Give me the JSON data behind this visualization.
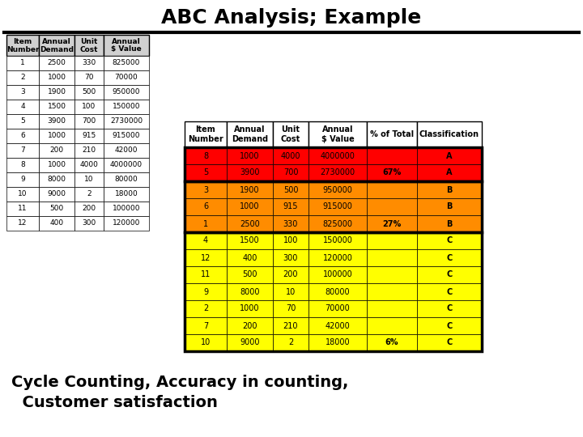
{
  "title": "ABC Analysis; Example",
  "subtitle": "Cycle Counting, Accuracy in counting,\n  Customer satisfaction",
  "left_table": {
    "col1_headers": [
      "Item",
      "Number"
    ],
    "col2_headers": [
      "Annual",
      "Demand"
    ],
    "col3_headers": [
      "Unit",
      "Cost"
    ],
    "col4_headers": [
      "Annual",
      "$ Value"
    ],
    "rows": [
      [
        "1",
        "2500",
        "330",
        "825000"
      ],
      [
        "2",
        "1000",
        "70",
        "70000"
      ],
      [
        "3",
        "1900",
        "500",
        "950000"
      ],
      [
        "4",
        "1500",
        "100",
        "150000"
      ],
      [
        "5",
        "3900",
        "700",
        "2730000"
      ],
      [
        "6",
        "1000",
        "915",
        "915000"
      ],
      [
        "7",
        "200",
        "210",
        "42000"
      ],
      [
        "8",
        "1000",
        "4000",
        "4000000"
      ],
      [
        "9",
        "8000",
        "10",
        "80000"
      ],
      [
        "10",
        "9000",
        "2",
        "18000"
      ],
      [
        "11",
        "500",
        "200",
        "100000"
      ],
      [
        "12",
        "400",
        "300",
        "120000"
      ]
    ]
  },
  "right_table": {
    "headers": [
      "Item\nNumber",
      "Annual\nDemand",
      "Unit\nCost",
      "Annual\n$ Value",
      "% of Total",
      "Classification"
    ],
    "rows": [
      [
        "8",
        "1000",
        "4000",
        "4000000",
        "",
        "A",
        "red"
      ],
      [
        "5",
        "3900",
        "700",
        "2730000",
        "67%",
        "A",
        "red"
      ],
      [
        "3",
        "1900",
        "500",
        "950000",
        "",
        "B",
        "orange"
      ],
      [
        "6",
        "1000",
        "915",
        "915000",
        "",
        "B",
        "orange"
      ],
      [
        "1",
        "2500",
        "330",
        "825000",
        "27%",
        "B",
        "orange"
      ],
      [
        "4",
        "1500",
        "100",
        "150000",
        "",
        "C",
        "yellow"
      ],
      [
        "12",
        "400",
        "300",
        "120000",
        "",
        "C",
        "yellow"
      ],
      [
        "11",
        "500",
        "200",
        "100000",
        "",
        "C",
        "yellow"
      ],
      [
        "9",
        "8000",
        "10",
        "80000",
        "",
        "C",
        "yellow"
      ],
      [
        "2",
        "1000",
        "70",
        "70000",
        "",
        "C",
        "yellow"
      ],
      [
        "7",
        "200",
        "210",
        "42000",
        "",
        "C",
        "yellow"
      ],
      [
        "10",
        "9000",
        "2",
        "18000",
        "6%",
        "C",
        "yellow"
      ]
    ]
  },
  "bg_color": "#ffffff",
  "title_fontsize": 18,
  "subtitle_fontsize": 14,
  "color_map": {
    "red": "#ff0000",
    "orange": "#ff8c00",
    "yellow": "#ffff00"
  }
}
